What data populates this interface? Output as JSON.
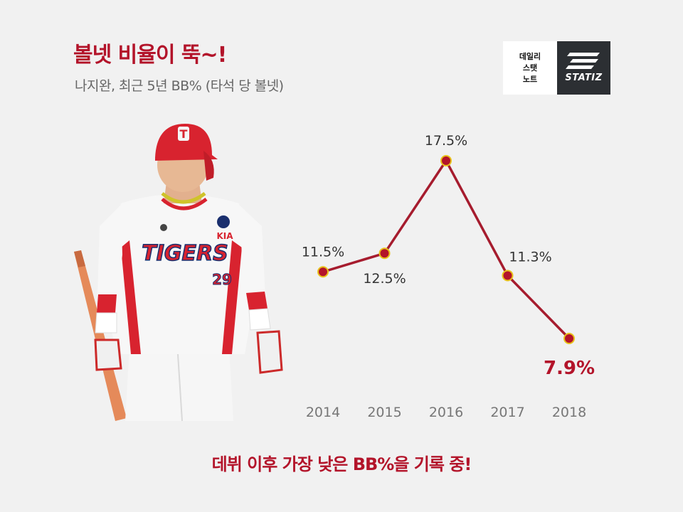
{
  "header": {
    "title": "볼넷 비율이 뚝~!",
    "subtitle": "나지완, 최근 5년 BB% (타석 당 볼넷)"
  },
  "logo": {
    "lines": [
      "데일리",
      "스탯",
      "노트"
    ],
    "wordmark": "STATIZ"
  },
  "player_photo": {
    "cap_letter": "T",
    "jersey_text": "TIGERS",
    "jersey_number": "29",
    "team_mark": "KIA"
  },
  "footer": {
    "text": "데뷔 이후 가장 낮은 BB%을 기록 중!"
  },
  "colors": {
    "accent": "#b3142a",
    "line": "#a61c2e",
    "marker": "#b3142a",
    "marker_outline": "#e8c21a",
    "label": "#333333",
    "axis_label": "#777777"
  },
  "chart_data": {
    "type": "line",
    "title": "",
    "xlabel": "",
    "ylabel": "",
    "x": [
      "2014",
      "2015",
      "2016",
      "2017",
      "2018"
    ],
    "series": [
      {
        "values": [
          11.5,
          12.5,
          17.5,
          11.3,
          7.9
        ],
        "labels": [
          "11.5%",
          "12.5%",
          "17.5%",
          "11.3%",
          "7.9%"
        ],
        "highlight_index": 4
      }
    ],
    "ylim": [
      7.9,
      17.5
    ],
    "grid": false,
    "legend": "none"
  }
}
